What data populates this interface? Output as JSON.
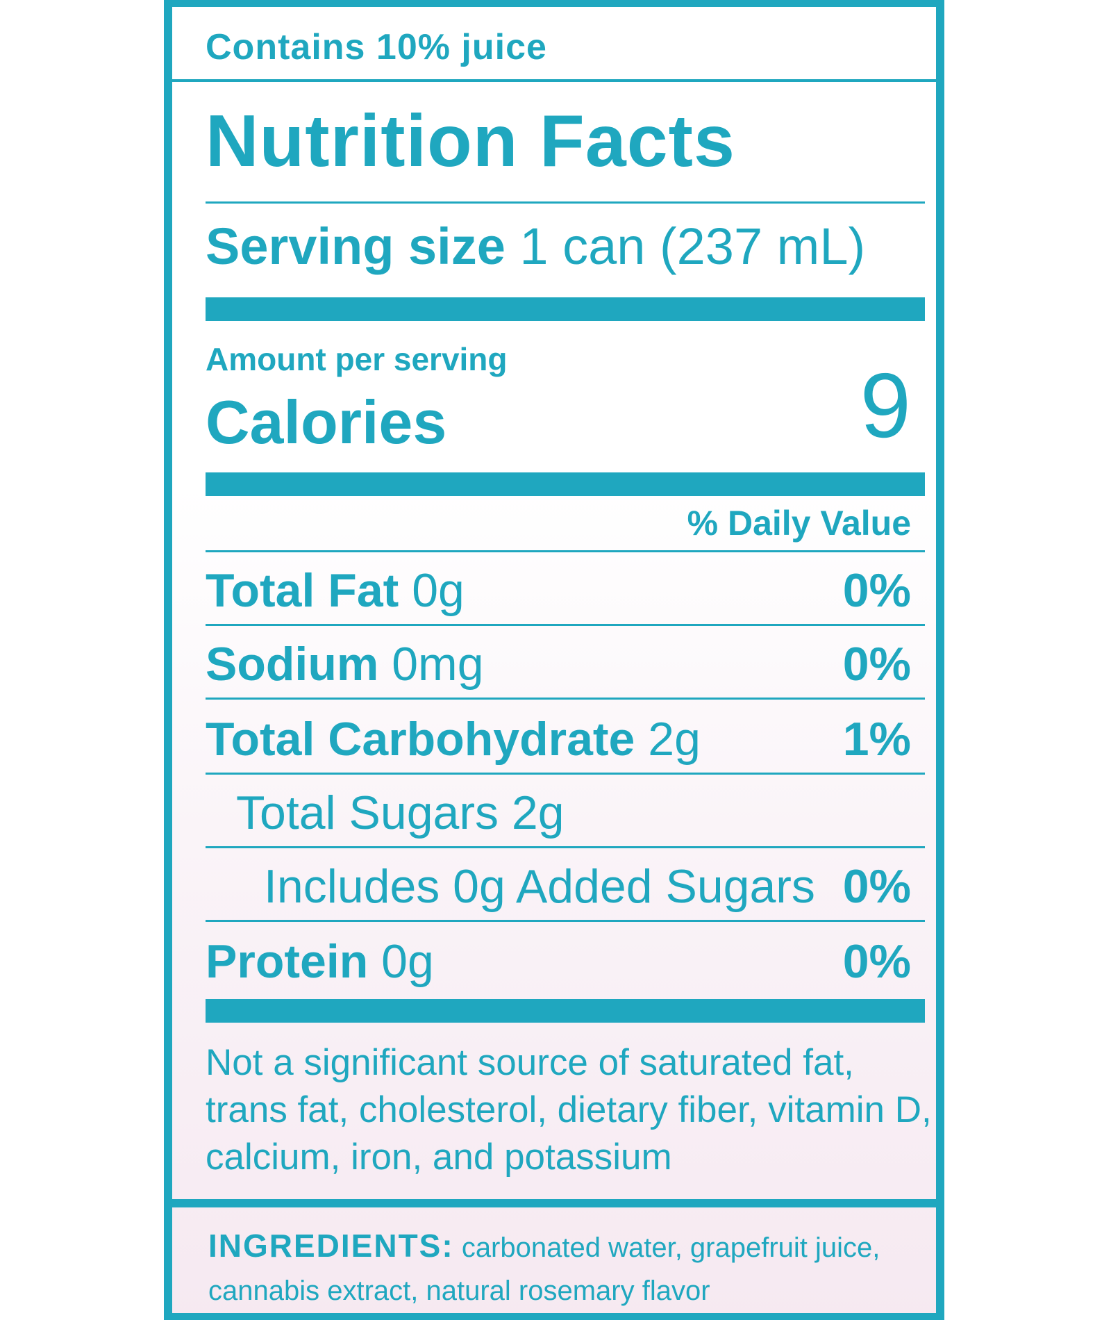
{
  "label": {
    "juice_note": "Contains 10% juice",
    "title": "Nutrition Facts",
    "serving_label": "Serving size",
    "serving_value": "1 can (237 mL)",
    "amount_per_serving": "Amount per serving",
    "calories_label": "Calories",
    "calories_value": "9",
    "daily_value_header": "% Daily Value",
    "rows": [
      {
        "name": "Total Fat",
        "amount": "0g",
        "dv": "0%"
      },
      {
        "name": "Sodium",
        "amount": "0mg",
        "dv": "0%"
      },
      {
        "name": "Total Carbohydrate",
        "amount": "2g",
        "dv": "1%"
      },
      {
        "name": "",
        "amount": "Total Sugars 2g",
        "dv": ""
      },
      {
        "name": "",
        "amount": "Includes 0g Added Sugars",
        "dv": "0%"
      },
      {
        "name": "Protein",
        "amount": "0g",
        "dv": "0%"
      }
    ],
    "footnote": "Not a significant source of saturated fat, trans fat, cholesterol, dietary fiber, vitamin D, calcium, iron, and potassium",
    "ingredients_heading": "INGREDIENTS:",
    "ingredients_text": "carbonated water, grapefruit juice, cannabis extract, natural rosemary flavor"
  },
  "colors": {
    "accent": "#1fa7bf",
    "background_top": "#ffffff",
    "background_bottom": "#f6e9f1"
  }
}
